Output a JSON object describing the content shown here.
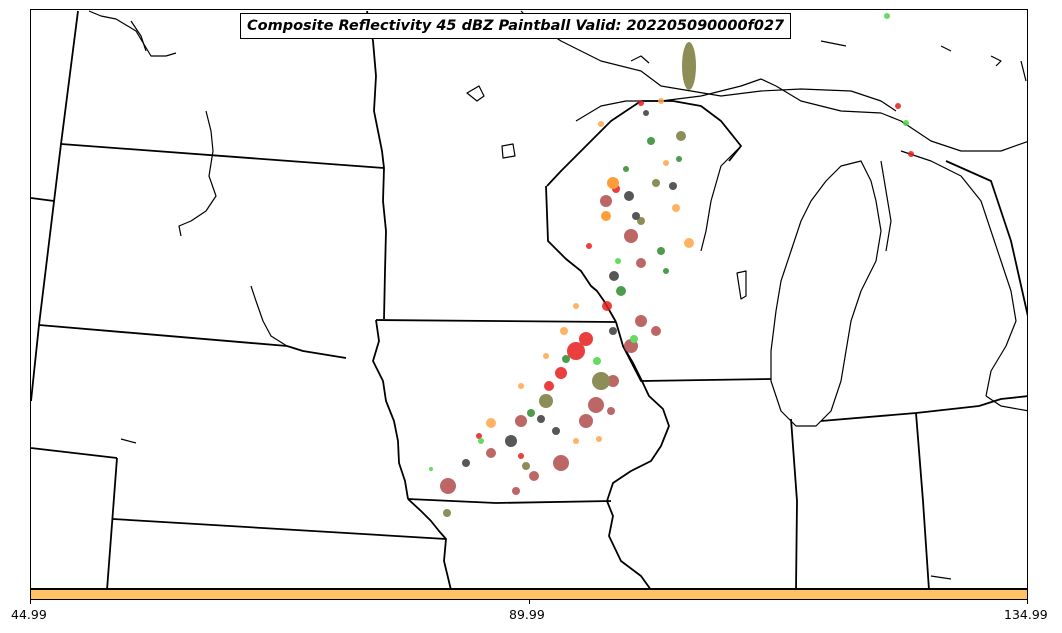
{
  "title": "Composite Reflectivity 45 dBZ Paintball Valid: 202205090000f027",
  "colorbar": {
    "color": "#ffc266",
    "ticks": [
      "44.99",
      "89.99",
      "134.99"
    ]
  },
  "paintball_colors": [
    "#b24c4c",
    "#e61e1e",
    "#ff8c1a",
    "#ffa54a",
    "#6b8e23",
    "#7a7a3a",
    "#3a3a3a",
    "#4bd44b",
    "#2e8b2e"
  ],
  "map_features": [
    "state-borders",
    "coastlines",
    "lakes"
  ]
}
